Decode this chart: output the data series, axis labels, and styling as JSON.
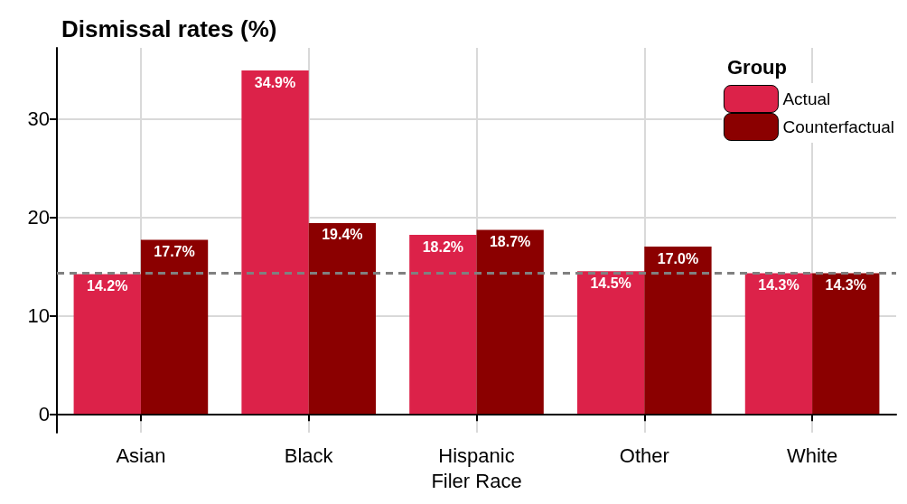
{
  "chart_data": {
    "type": "bar",
    "title": "Dismissal rates (%)",
    "xlabel": "Filer Race",
    "legend_title": "Group",
    "categories": [
      "Asian",
      "Black",
      "Hispanic",
      "Other",
      "White"
    ],
    "series": [
      {
        "name": "Actual",
        "color": "#dc2249",
        "values": [
          14.2,
          34.9,
          18.2,
          14.5,
          14.3
        ],
        "value_labels": [
          "14.2%",
          "34.9%",
          "18.2%",
          "14.5%",
          "14.3%"
        ]
      },
      {
        "name": "Counterfactual",
        "color": "#8b0000",
        "values": [
          17.7,
          19.4,
          18.7,
          17.0,
          14.3
        ],
        "value_labels": [
          "17.7%",
          "19.4%",
          "18.7%",
          "17.0%",
          "14.3%"
        ]
      }
    ],
    "ylim": [
      -1.9,
      37.2
    ],
    "yticks": [
      0,
      10,
      20,
      30
    ],
    "grid": true,
    "legend": "top right",
    "ref_lines": [
      {
        "axis": "y",
        "value": 14.3,
        "color": "#808080",
        "line_style": "dashed"
      }
    ]
  }
}
